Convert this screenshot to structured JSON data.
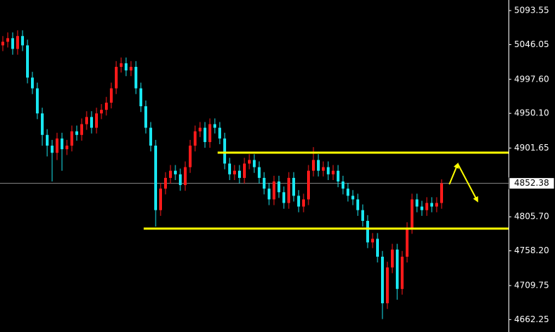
{
  "chart_data": {
    "type": "candlestick",
    "up_color": "#ff1a1a",
    "down_color": "#19e6f0",
    "level_color": "#ffff00",
    "ylim": [
      4644.9,
      5108.3
    ],
    "yticks": [
      5093.55,
      5046.05,
      {
        "value": 4997.6,
        "label": "4997.60"
      },
      {
        "value": 4950.1,
        "label": "4950.10"
      },
      4901.65,
      {
        "value": 4805.7,
        "label": "4805.70"
      },
      {
        "value": 4758.2,
        "label": "4758.20"
      },
      4709.75,
      4662.25
    ],
    "current_price": 4852.38,
    "levels": [
      {
        "value": 4895.3,
        "start": 44
      },
      {
        "value": 4789.2,
        "start": 29
      }
    ],
    "open": [
      5045,
      5050,
      5055,
      5040,
      5058,
      5045,
      5000,
      4985,
      4950,
      4920,
      4905,
      4895,
      4915,
      4900,
      4905,
      4925,
      4920,
      4935,
      4945,
      4930,
      4950,
      4955,
      4965,
      4985,
      5015,
      5020,
      5010,
      5015,
      4985,
      4960,
      4930,
      4905,
      4815,
      4845,
      4860,
      4870,
      4865,
      4850,
      4875,
      4905,
      4925,
      4930,
      4910,
      4935,
      4930,
      4915,
      4880,
      4865,
      4870,
      4860,
      4880,
      4885,
      4875,
      4860,
      4845,
      4830,
      4855,
      4840,
      4825,
      4860,
      4835,
      4820,
      4830,
      4870,
      4885,
      4870,
      4875,
      4865,
      4870,
      4855,
      4845,
      4835,
      4830,
      4815,
      4800,
      4770,
      4775,
      4750,
      4685,
      4735,
      4760,
      4705,
      4750,
      4790,
      4830,
      4820,
      4815,
      4825,
      4820,
      4825
    ],
    "high": [
      5058,
      5063,
      5063,
      5066,
      5066,
      5053,
      5008,
      4993,
      4958,
      4928,
      4913,
      4923,
      4923,
      4913,
      4933,
      4933,
      4943,
      4953,
      4953,
      4958,
      4963,
      4973,
      4993,
      5023,
      5028,
      5028,
      5023,
      5023,
      4993,
      4968,
      4938,
      4913,
      4853,
      4868,
      4878,
      4878,
      4873,
      4883,
      4913,
      4933,
      4938,
      4938,
      4943,
      4943,
      4938,
      4923,
      4888,
      4878,
      4878,
      4888,
      4893,
      4893,
      4883,
      4868,
      4853,
      4863,
      4863,
      4848,
      4868,
      4868,
      4843,
      4838,
      4878,
      4903,
      4893,
      4883,
      4883,
      4878,
      4878,
      4863,
      4853,
      4843,
      4838,
      4823,
      4808,
      4783,
      4783,
      4758,
      4743,
      4768,
      4768,
      4758,
      4798,
      4838,
      4838,
      4828,
      4833,
      4833,
      4833,
      4858
    ],
    "low": [
      5037,
      5042,
      5032,
      5032,
      5037,
      4992,
      4977,
      4942,
      4905,
      4890,
      4855,
      4885,
      4870,
      4892,
      4897,
      4912,
      4912,
      4927,
      4922,
      4922,
      4942,
      4947,
      4957,
      4977,
      5007,
      5002,
      5002,
      4977,
      4952,
      4922,
      4897,
      4792,
      4807,
      4837,
      4852,
      4857,
      4842,
      4842,
      4867,
      4897,
      4917,
      4902,
      4902,
      4922,
      4907,
      4872,
      4857,
      4857,
      4852,
      4852,
      4872,
      4867,
      4852,
      4837,
      4822,
      4822,
      4832,
      4817,
      4817,
      4827,
      4812,
      4812,
      4822,
      4862,
      4862,
      4862,
      4857,
      4857,
      4847,
      4837,
      4827,
      4822,
      4807,
      4792,
      4762,
      4762,
      4742,
      4663,
      4677,
      4727,
      4690,
      4697,
      4742,
      4782,
      4812,
      4807,
      4807,
      4812,
      4812,
      4817
    ],
    "close": [
      5050,
      5055,
      5040,
      5058,
      5045,
      5000,
      4985,
      4950,
      4920,
      4905,
      4895,
      4915,
      4900,
      4905,
      4925,
      4920,
      4935,
      4945,
      4930,
      4950,
      4955,
      4965,
      4985,
      5015,
      5020,
      5010,
      5015,
      4985,
      4960,
      4930,
      4905,
      4815,
      4845,
      4860,
      4870,
      4865,
      4850,
      4875,
      4905,
      4925,
      4930,
      4910,
      4935,
      4930,
      4915,
      4880,
      4865,
      4870,
      4860,
      4880,
      4885,
      4875,
      4860,
      4845,
      4830,
      4855,
      4840,
      4825,
      4860,
      4835,
      4820,
      4830,
      4870,
      4885,
      4870,
      4875,
      4865,
      4870,
      4855,
      4845,
      4835,
      4830,
      4815,
      4800,
      4770,
      4775,
      4750,
      4685,
      4735,
      4760,
      4705,
      4750,
      4790,
      4830,
      4820,
      4815,
      4825,
      4820,
      4825,
      4852.38
    ]
  }
}
